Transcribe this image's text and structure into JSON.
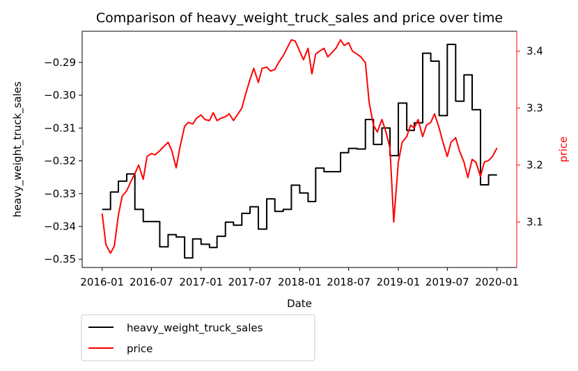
{
  "chart_data": {
    "type": "line",
    "title": "Comparison of heavy_weight_truck_sales and price over time",
    "xlabel": "Date",
    "ylabel_left": "heavy_weight_truck_sales",
    "ylabel_right": "price",
    "x_ticks": [
      "2016-01",
      "2016-07",
      "2017-01",
      "2017-07",
      "2018-01",
      "2018-07",
      "2019-01",
      "2019-07",
      "2020-01"
    ],
    "y_left_ticks": [
      "−0.29",
      "−0.30",
      "−0.31",
      "−0.32",
      "−0.33",
      "−0.34",
      "−0.35"
    ],
    "y_right_ticks": [
      "3.4",
      "3.3",
      "3.2",
      "3.1"
    ],
    "ylim_left": [
      -0.3525,
      -0.2805
    ],
    "ylim_right": [
      3.02,
      3.435
    ],
    "xlim": [
      "2015-10-19",
      "2020-03-14"
    ],
    "grid": false,
    "legend_position": "below-left",
    "series": [
      {
        "name": "heavy_weight_truck_sales",
        "color": "#000000",
        "axis": "left",
        "step": true,
        "x": [
          "2016-01",
          "2016-02",
          "2016-03",
          "2016-04",
          "2016-05",
          "2016-06",
          "2016-07",
          "2016-08",
          "2016-09",
          "2016-10",
          "2016-11",
          "2016-12",
          "2017-01",
          "2017-02",
          "2017-03",
          "2017-04",
          "2017-05",
          "2017-06",
          "2017-07",
          "2017-08",
          "2017-09",
          "2017-10",
          "2017-11",
          "2017-12",
          "2018-01",
          "2018-02",
          "2018-03",
          "2018-04",
          "2018-05",
          "2018-06",
          "2018-07",
          "2018-08",
          "2018-09",
          "2018-10",
          "2018-11",
          "2018-12",
          "2019-01",
          "2019-02",
          "2019-03",
          "2019-04",
          "2019-05",
          "2019-06",
          "2019-07",
          "2019-08",
          "2019-09",
          "2019-10",
          "2019-11",
          "2019-12",
          "2020-01"
        ],
        "values": [
          -0.3348,
          -0.3295,
          -0.3262,
          -0.324,
          -0.3348,
          -0.3385,
          -0.3385,
          -0.3462,
          -0.3425,
          -0.3432,
          -0.3496,
          -0.3438,
          -0.3454,
          -0.3464,
          -0.343,
          -0.3387,
          -0.3396,
          -0.336,
          -0.334,
          -0.3408,
          -0.3316,
          -0.3354,
          -0.3348,
          -0.3274,
          -0.3298,
          -0.3324,
          -0.3222,
          -0.3233,
          -0.3233,
          -0.3175,
          -0.3162,
          -0.3164,
          -0.3074,
          -0.315,
          -0.31,
          -0.3184,
          -0.3024,
          -0.3107,
          -0.3084,
          -0.2872,
          -0.2896,
          -0.3062,
          -0.2845,
          -0.3018,
          -0.2938,
          -0.3044,
          -0.3273,
          -0.3243,
          -0.3243
        ]
      },
      {
        "name": "price",
        "color": "#ff0000",
        "axis": "right",
        "x": [
          "2016-01-01",
          "2016-01-15",
          "2016-02-01",
          "2016-02-15",
          "2016-03-01",
          "2016-03-15",
          "2016-04-01",
          "2016-04-15",
          "2016-05-01",
          "2016-05-15",
          "2016-06-01",
          "2016-06-15",
          "2016-07-01",
          "2016-07-15",
          "2016-08-01",
          "2016-08-15",
          "2016-09-01",
          "2016-09-15",
          "2016-10-01",
          "2016-10-15",
          "2016-11-01",
          "2016-11-15",
          "2016-12-01",
          "2016-12-15",
          "2017-01-01",
          "2017-01-15",
          "2017-02-01",
          "2017-02-15",
          "2017-03-01",
          "2017-03-15",
          "2017-04-01",
          "2017-04-15",
          "2017-05-01",
          "2017-05-15",
          "2017-06-01",
          "2017-06-15",
          "2017-07-01",
          "2017-07-15",
          "2017-08-01",
          "2017-08-15",
          "2017-09-01",
          "2017-09-15",
          "2017-10-01",
          "2017-10-15",
          "2017-11-01",
          "2017-11-15",
          "2017-12-01",
          "2017-12-15",
          "2018-01-01",
          "2018-01-15",
          "2018-02-01",
          "2018-02-15",
          "2018-03-01",
          "2018-03-15",
          "2018-04-01",
          "2018-04-15",
          "2018-05-01",
          "2018-05-15",
          "2018-06-01",
          "2018-06-15",
          "2018-07-01",
          "2018-07-15",
          "2018-08-01",
          "2018-08-15",
          "2018-09-01",
          "2018-09-15",
          "2018-10-01",
          "2018-10-15",
          "2018-11-01",
          "2018-11-15",
          "2018-12-01",
          "2018-12-15",
          "2019-01-01",
          "2019-01-15",
          "2019-02-01",
          "2019-02-15",
          "2019-03-01",
          "2019-03-15",
          "2019-04-01",
          "2019-04-15",
          "2019-05-01",
          "2019-05-15",
          "2019-06-01",
          "2019-06-15",
          "2019-07-01",
          "2019-07-15",
          "2019-08-01",
          "2019-08-15",
          "2019-09-01",
          "2019-09-15",
          "2019-10-01",
          "2019-10-15",
          "2019-11-01",
          "2019-11-15",
          "2019-12-01",
          "2019-12-15",
          "2020-01-01"
        ],
        "values": [
          3.115,
          3.06,
          3.045,
          3.058,
          3.112,
          3.145,
          3.155,
          3.17,
          3.185,
          3.2,
          3.175,
          3.215,
          3.22,
          3.218,
          3.225,
          3.232,
          3.24,
          3.225,
          3.195,
          3.232,
          3.268,
          3.275,
          3.272,
          3.282,
          3.288,
          3.28,
          3.278,
          3.292,
          3.278,
          3.282,
          3.285,
          3.29,
          3.278,
          3.288,
          3.3,
          3.325,
          3.35,
          3.37,
          3.345,
          3.37,
          3.372,
          3.365,
          3.368,
          3.38,
          3.392,
          3.405,
          3.42,
          3.418,
          3.4,
          3.385,
          3.405,
          3.36,
          3.395,
          3.4,
          3.405,
          3.39,
          3.398,
          3.405,
          3.42,
          3.41,
          3.415,
          3.4,
          3.395,
          3.39,
          3.38,
          3.31,
          3.27,
          3.258,
          3.28,
          3.26,
          3.23,
          3.1,
          3.205,
          3.24,
          3.25,
          3.27,
          3.265,
          3.28,
          3.25,
          3.27,
          3.275,
          3.29,
          3.265,
          3.24,
          3.215,
          3.24,
          3.248,
          3.225,
          3.205,
          3.178,
          3.21,
          3.205,
          3.18,
          3.205,
          3.208,
          3.215,
          3.23
        ]
      }
    ]
  }
}
